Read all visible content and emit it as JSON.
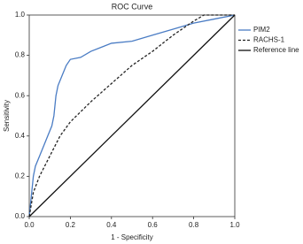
{
  "chart_data": {
    "type": "line",
    "title": "ROC Curve",
    "x_label": "1 - Specificity",
    "y_label": "Sensitivity",
    "xlim": [
      0,
      1
    ],
    "ylim": [
      0,
      1
    ],
    "xticks": [
      {
        "value": 0,
        "label": "0.0"
      },
      {
        "value": 0.2,
        "label": "0.2"
      },
      {
        "value": 0.4,
        "label": "0.4"
      },
      {
        "value": 0.6,
        "label": "0.6"
      },
      {
        "value": 0.8,
        "label": "0.8"
      },
      {
        "value": 1,
        "label": "1.0"
      }
    ],
    "yticks": [
      {
        "value": 0,
        "label": "0.0"
      },
      {
        "value": 0.2,
        "label": "0.2"
      },
      {
        "value": 0.4,
        "label": "0.4"
      },
      {
        "value": 0.6,
        "label": "0.6"
      },
      {
        "value": 0.8,
        "label": "0.8"
      },
      {
        "value": 1,
        "label": "1.0"
      }
    ],
    "legend": "right",
    "series": [
      {
        "name": "PIM2",
        "color": "#4a7cc4",
        "dash": "solid",
        "x": [
          0,
          0.01,
          0.02,
          0.03,
          0.05,
          0.07,
          0.09,
          0.11,
          0.12,
          0.13,
          0.14,
          0.16,
          0.18,
          0.2,
          0.25,
          0.3,
          0.35,
          0.4,
          0.5,
          0.6,
          0.7,
          0.8,
          0.9,
          1
        ],
        "values": [
          0,
          0.1,
          0.2,
          0.25,
          0.3,
          0.35,
          0.4,
          0.45,
          0.5,
          0.6,
          0.65,
          0.7,
          0.75,
          0.78,
          0.79,
          0.82,
          0.84,
          0.86,
          0.87,
          0.9,
          0.93,
          0.96,
          0.98,
          1
        ]
      },
      {
        "name": "RACHS-1",
        "color": "#222222",
        "dash": "dashed",
        "x": [
          0,
          0.02,
          0.05,
          0.1,
          0.15,
          0.2,
          0.25,
          0.3,
          0.4,
          0.5,
          0.6,
          0.7,
          0.8,
          0.85,
          1
        ],
        "values": [
          0,
          0.12,
          0.2,
          0.3,
          0.4,
          0.47,
          0.52,
          0.57,
          0.66,
          0.75,
          0.82,
          0.9,
          0.97,
          1,
          1
        ]
      },
      {
        "name": "Reference line",
        "color": "#111111",
        "dash": "solid",
        "x": [
          0,
          1
        ],
        "values": [
          0,
          1
        ]
      }
    ]
  }
}
